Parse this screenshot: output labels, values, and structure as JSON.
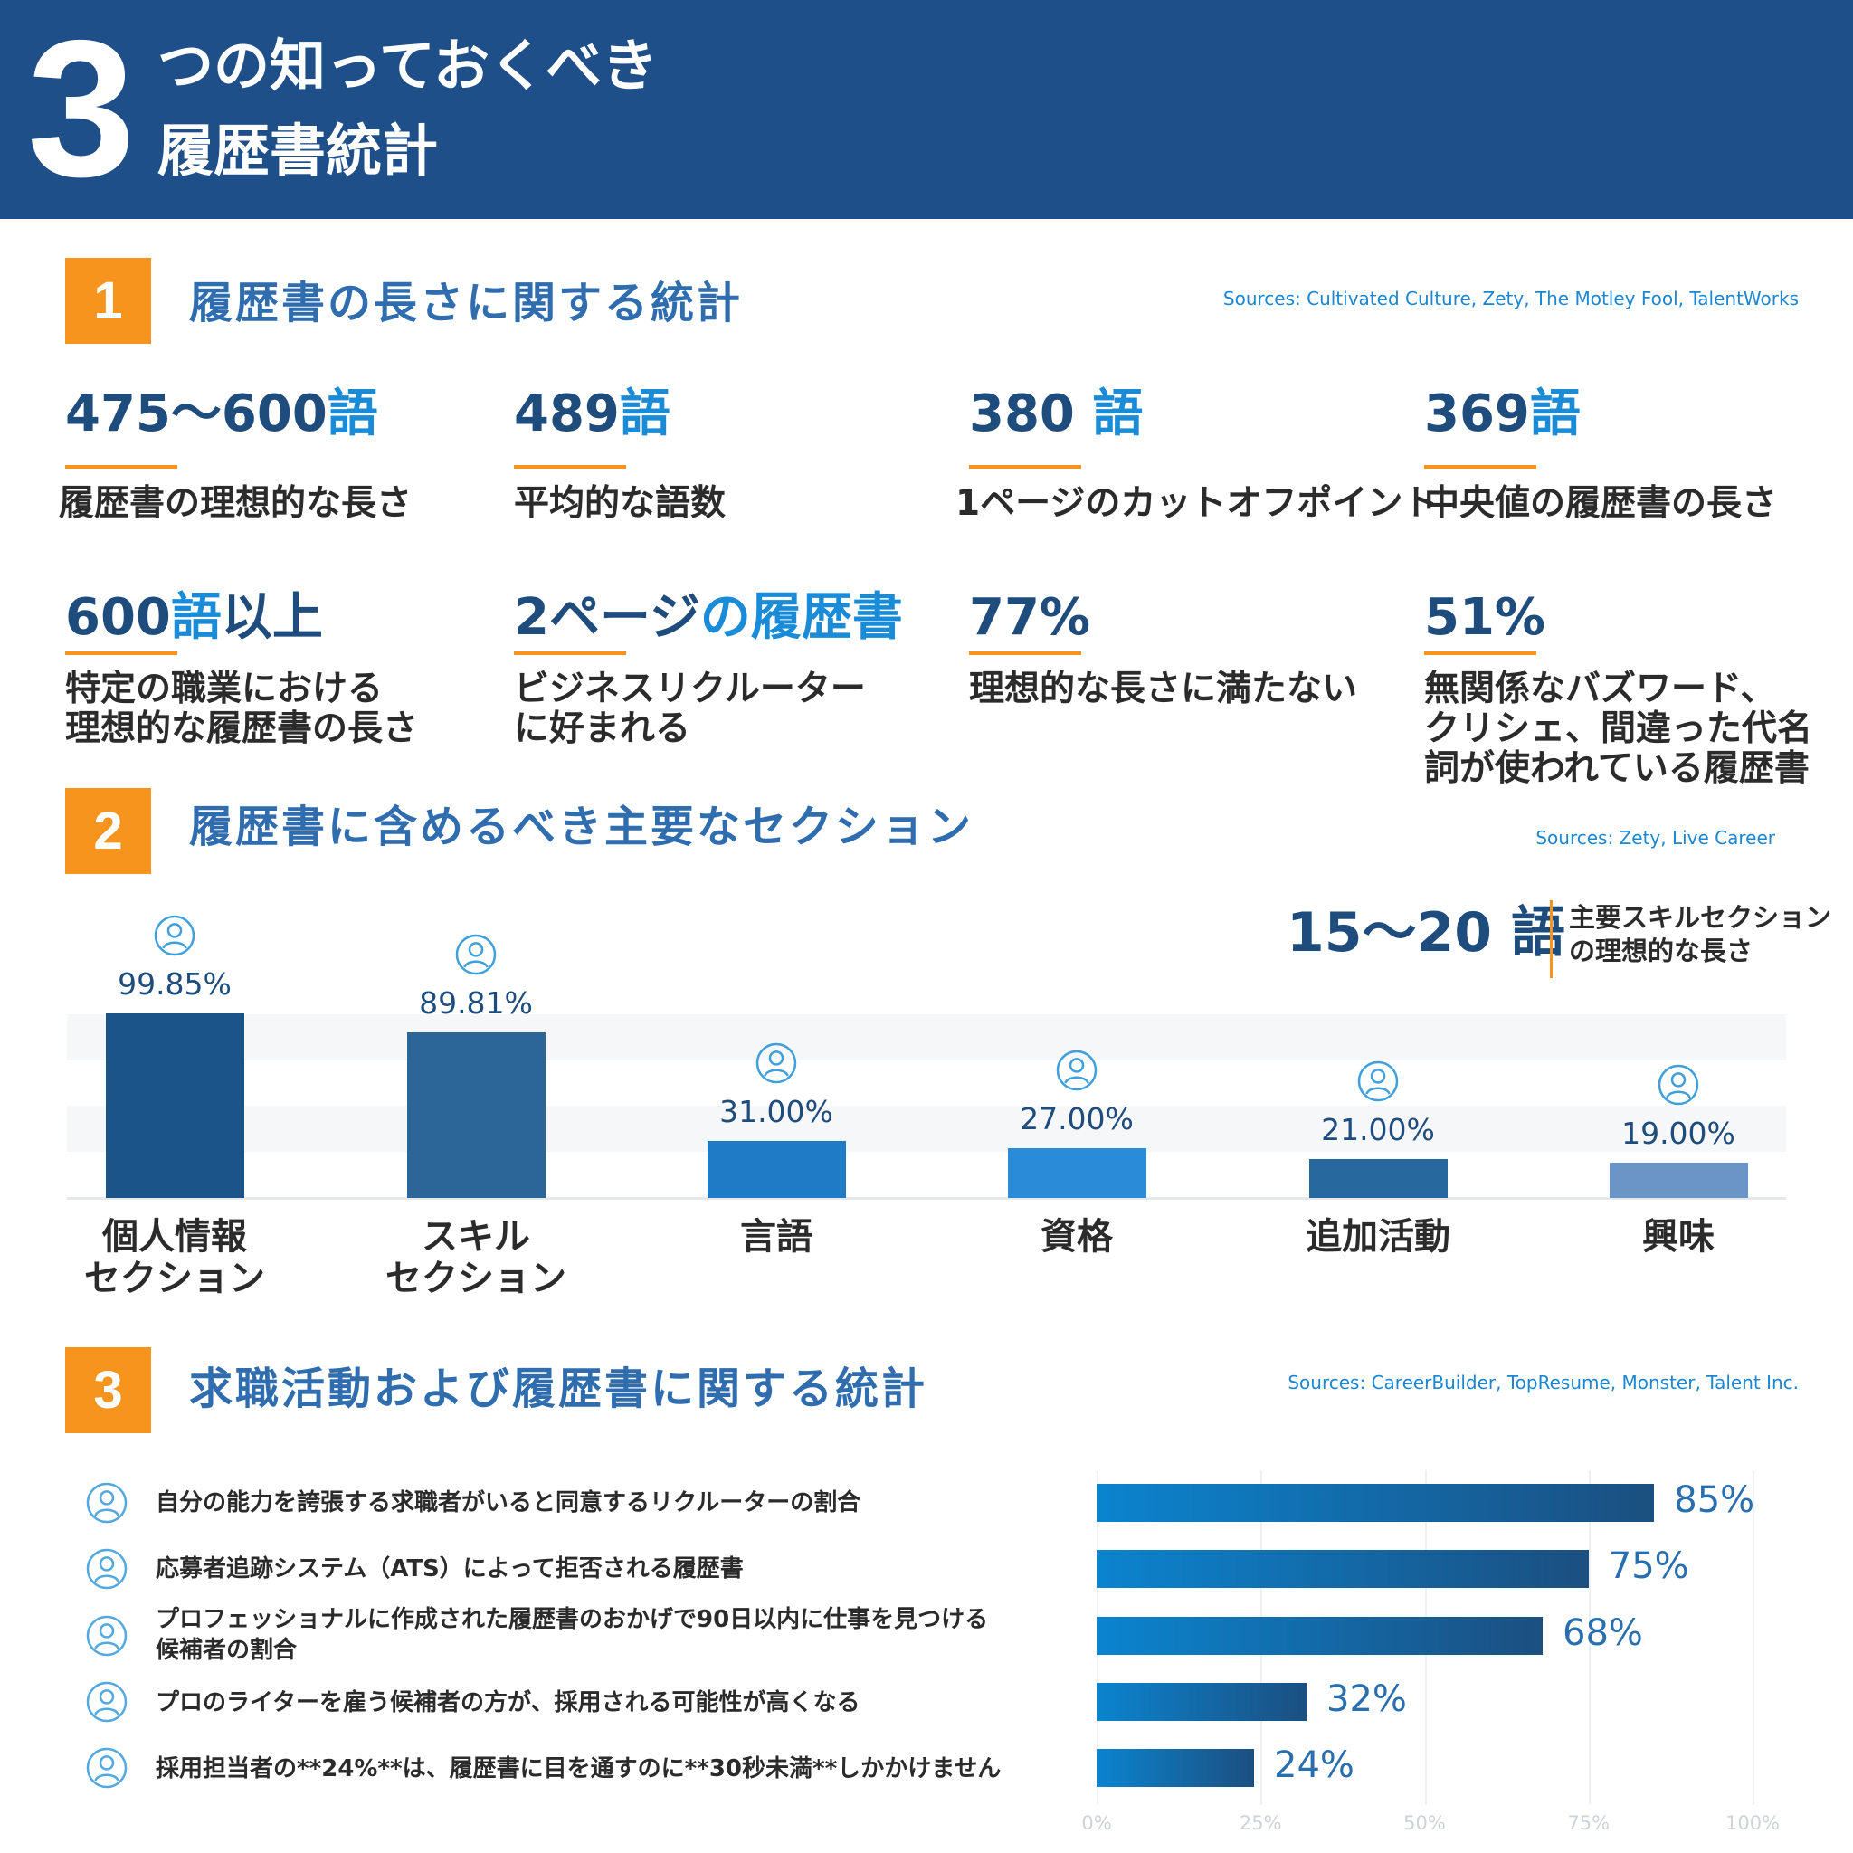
{
  "header": {
    "number": "3",
    "title_line1": "つの知っておくべき",
    "title_line2": "履歴書統計",
    "bg_color": "#1f4f88"
  },
  "accent_color": "#f7941d",
  "section1": {
    "number": "1",
    "title": "履歴書の長さに関する統計",
    "sources": "Sources: Cultivated Culture, Zety, The Motley Fool, TalentWorks",
    "stats": [
      {
        "value": "475〜600",
        "unit": "語",
        "label": "履歴書の理想的な長さ"
      },
      {
        "value": "489",
        "unit": "語",
        "label": "平均的な語数"
      },
      {
        "value": "380 ",
        "unit": "語",
        "label": "1ページのカットオフポイント"
      },
      {
        "value": "369",
        "unit": "語",
        "label": "中央値の履歴書の長さ"
      },
      {
        "value": "600",
        "unit": "語",
        "suffix": "以上",
        "label": "特定の職業における\n理想的な履歴書の長さ"
      },
      {
        "value": "2ページ",
        "unit": "の履歴書",
        "label": "ビジネスリクルーター\nに好まれる"
      },
      {
        "value": "77%",
        "unit": "",
        "label": "理想的な長さに満たない"
      },
      {
        "value": "51%",
        "unit": "",
        "label": "無関係なバズワード、\nクリシェ、間違った代名\n詞が使われている履歴書"
      }
    ]
  },
  "section2": {
    "number": "2",
    "title": "履歴書に含めるべき主要なセクション",
    "sources": "Sources: Zety, Live Career",
    "callout": {
      "value": "15〜20 語",
      "label": "主要スキルセクション\nの理想的な長さ"
    }
  },
  "section3": {
    "number": "3",
    "title": "求職活動および履歴書に関する統計",
    "sources": "Sources: CareerBuilder, TopResume, Monster, Talent Inc."
  },
  "chart_data": [
    {
      "type": "bar",
      "categories": [
        "個人情報\nセクション",
        "スキル\nセクション",
        "言語",
        "資格",
        "追加活動",
        "興味"
      ],
      "values": [
        99.85,
        89.81,
        31.0,
        27.0,
        21.0,
        19.0
      ],
      "value_labels": [
        "99.85%",
        "89.81%",
        "31.00%",
        "27.00%",
        "21.00%",
        "19.00%"
      ],
      "icons": [
        "profile-icon",
        "skills-network-icon",
        "translation-icon",
        "certificate-icon",
        "activities-icon",
        "interests-icon"
      ],
      "colors": [
        "#1a5488",
        "#2c6598",
        "#1f7bc5",
        "#2a8cd8",
        "#27699f",
        "#6b94c7"
      ],
      "ylim": [
        0,
        100
      ],
      "grid": false
    },
    {
      "type": "bar",
      "orientation": "horizontal",
      "categories": [
        "自分の能力を誇張する求職者がいると同意するリクルーターの割合",
        "応募者追跡システム（ATS）によって拒否される履歴書",
        "プロフェッショナルに作成された履歴書のおかげで90日以内に仕事を見つける\n候補者の割合",
        "プロのライターを雇う候補者の方が、採用される可能性が高くなる",
        "採用担当者の**24%**は、履歴書に目を通すのに**30秒未満**しかかけません"
      ],
      "values": [
        85,
        75,
        68,
        32,
        24
      ],
      "value_labels": [
        "85%",
        "75%",
        "68%",
        "32%",
        "24%"
      ],
      "icons": [
        "target-user-icon",
        "ats-reject-icon",
        "briefcase-envelope-icon",
        "pen-icon",
        "stopwatch-icon"
      ],
      "xlim": [
        0,
        100
      ],
      "xticks": [
        "0%",
        "25%",
        "50%",
        "75%",
        "100%"
      ],
      "grid": true
    }
  ]
}
